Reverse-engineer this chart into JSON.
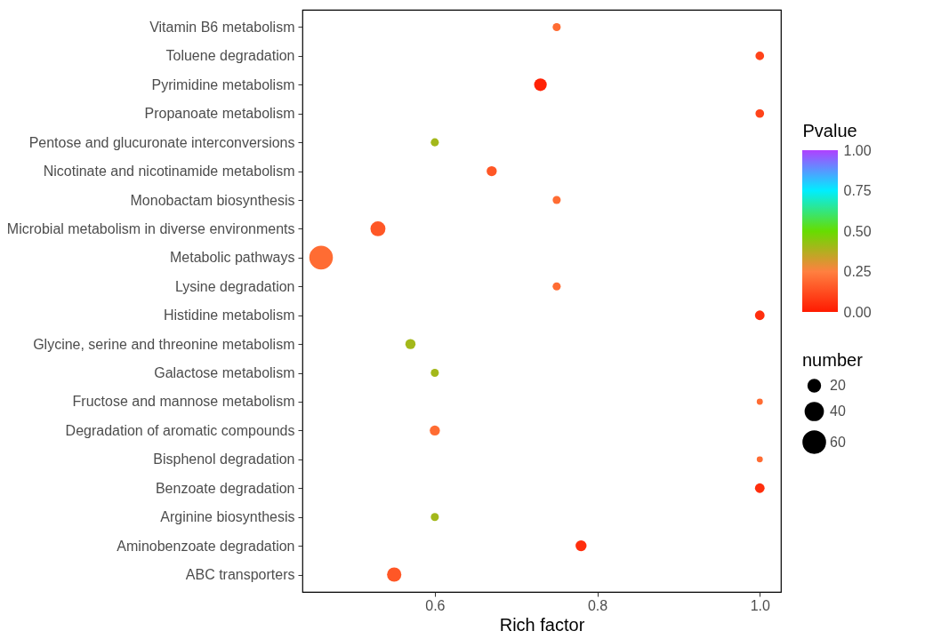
{
  "chart_data": {
    "type": "bubble",
    "orientation": "horizontal",
    "xlabel": "Rich factor",
    "legend_title": "number",
    "clabel": "Pvalue",
    "categories": [
      "Vitamin B6 metabolism",
      "Toluene degradation",
      "Pyrimidine metabolism",
      "Propanoate metabolism",
      "Pentose and glucuronate interconversions",
      "Nicotinate and nicotinamide metabolism",
      "Monobactam biosynthesis",
      "Microbial metabolism in diverse environments",
      "Metabolic pathways",
      "Lysine degradation",
      "Histidine metabolism",
      "Glycine, serine and threonine metabolism",
      "Galactose metabolism",
      "Fructose and mannose metabolism",
      "Degradation of aromatic compounds",
      "Bisphenol degradation",
      "Benzoate degradation",
      "Arginine biosynthesis",
      "Aminobenzoate degradation",
      "ABC transporters"
    ],
    "values": [
      0.75,
      1.0,
      0.73,
      1.0,
      0.6,
      0.67,
      0.75,
      0.53,
      0.46,
      0.75,
      1.0,
      0.57,
      0.6,
      1.0,
      0.6,
      1.0,
      1.0,
      0.6,
      0.78,
      0.55
    ],
    "sizes": [
      7,
      8,
      17,
      8,
      7,
      11,
      7,
      24,
      60,
      7,
      10,
      11,
      7,
      4,
      11,
      4,
      10,
      7,
      13,
      22
    ],
    "cvalues": [
      0.2,
      0.1,
      0.02,
      0.1,
      0.4,
      0.15,
      0.2,
      0.15,
      0.2,
      0.2,
      0.05,
      0.4,
      0.4,
      0.2,
      0.2,
      0.2,
      0.05,
      0.4,
      0.05,
      0.15
    ],
    "size_legend": [
      20,
      40,
      60
    ],
    "clim": [
      0,
      1
    ],
    "cticks": [
      {
        "value": 0,
        "label": "0.00"
      },
      {
        "value": 0.25,
        "label": "0.25"
      },
      {
        "value": 0.5,
        "label": "0.50"
      },
      {
        "value": 0.75,
        "label": "0.75"
      },
      {
        "value": 1,
        "label": "1.00"
      }
    ],
    "xlim": [
      0.437,
      1.026
    ],
    "xticks": [
      0.6,
      0.8,
      {
        "value": 1.0,
        "label": "1.0"
      }
    ],
    "grid": false
  }
}
